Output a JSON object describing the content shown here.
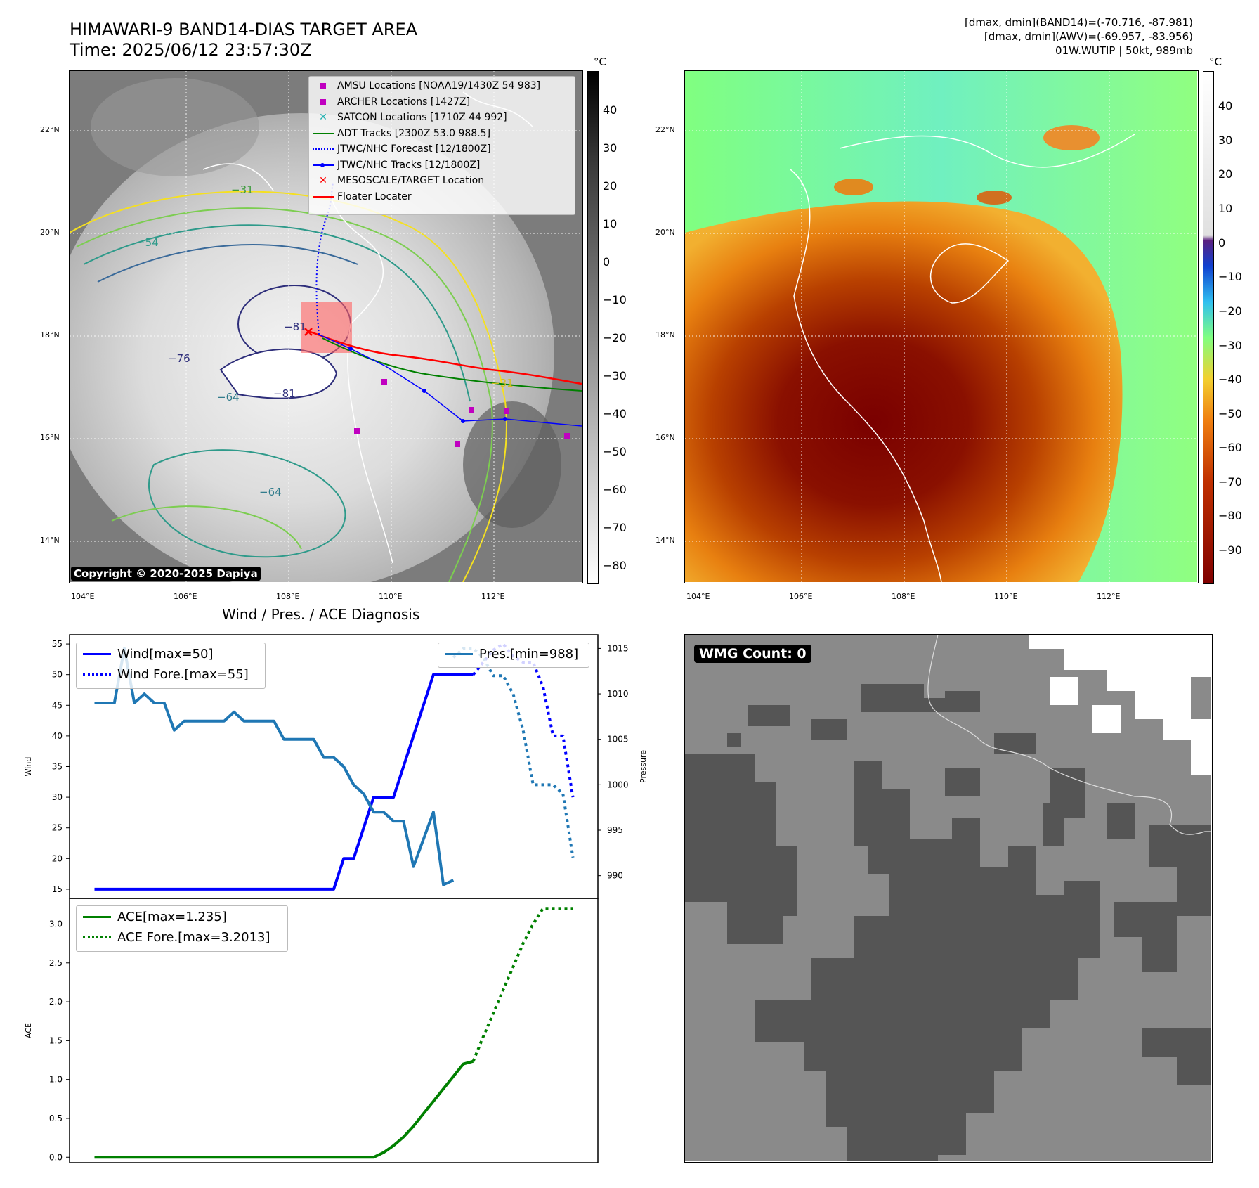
{
  "header": {
    "title_line1": "HIMAWARI-9 BAND14-DIAS TARGET AREA",
    "title_line2": "Time: 2025/06/12 23:57:30Z",
    "info_line1": "[dmax, dmin](BAND14)=(-70.716, -87.981)",
    "info_line2": "[dmax, dmin](AWV)=(-69.957, -83.956)",
    "info_line3": "01W.WUTIP | 50kt, 989mb"
  },
  "map_axes": {
    "lat_labels": [
      "22°N",
      "20°N",
      "18°N",
      "16°N",
      "14°N"
    ],
    "lon_labels": [
      "104°E",
      "106°E",
      "108°E",
      "110°E",
      "112°E"
    ],
    "colorbar_unit": "°C"
  },
  "ir_panel": {
    "copyright": "Copyright © 2020-2025 Dapiya",
    "colorbar_ticks": [
      "40",
      "30",
      "20",
      "10",
      "0",
      "−10",
      "−20",
      "−30",
      "−40",
      "−50",
      "−60",
      "−70",
      "−80"
    ],
    "contour_labels": [
      "−31",
      "−54",
      "−64",
      "−81",
      "−76",
      "−64",
      "−81",
      "−31"
    ],
    "legend": [
      {
        "label": "AMSU Locations [NOAA19/1430Z 54 983]",
        "symbol": "square",
        "color": "#c000c0"
      },
      {
        "label": "ARCHER Locations [1427Z]",
        "symbol": "square",
        "color": "#c000c0"
      },
      {
        "label": "SATCON Locations [1710Z 44 992]",
        "symbol": "x",
        "color": "#20b0b0"
      },
      {
        "label": "ADT Tracks [2300Z 53.0 988.5]",
        "symbol": "line",
        "color": "#008000"
      },
      {
        "label": "JTWC/NHC Forecast [12/1800Z]",
        "symbol": "dotted",
        "color": "#0000ff"
      },
      {
        "label": "JTWC/NHC Tracks [12/1800Z]",
        "symbol": "line-dot",
        "color": "#0000ff"
      },
      {
        "label": "MESOSCALE/TARGET Location",
        "symbol": "x",
        "color": "#ff0000"
      },
      {
        "label": "Floater Locater",
        "symbol": "line",
        "color": "#ff0000"
      }
    ]
  },
  "awv_panel": {
    "colorbar_ticks": [
      "40",
      "30",
      "20",
      "10",
      "0",
      "−10",
      "−20",
      "−30",
      "−40",
      "−50",
      "−60",
      "−70",
      "−80",
      "−90"
    ]
  },
  "diagnosis": {
    "title": "Wind / Pres. / ACE Diagnosis"
  },
  "wmg_panel": {
    "badge": "WMG Count: 0"
  },
  "colors": {
    "wind": "#0000ff",
    "pressure": "#1f77b4",
    "ace": "#008000"
  },
  "chart_data": [
    {
      "type": "line",
      "title": "",
      "ylabel": "Wind",
      "ylabel_right": "Pressure",
      "ylim": [
        13.5,
        56.5
      ],
      "ylim_right": [
        987.5,
        1016.5
      ],
      "yticks": [
        15,
        20,
        25,
        30,
        35,
        40,
        45,
        50,
        55
      ],
      "yticks_right": [
        990,
        995,
        1000,
        1005,
        1010,
        1015
      ],
      "x": [
        0,
        1,
        2,
        3,
        4,
        5,
        6,
        7,
        8,
        9,
        10,
        11,
        12,
        13,
        14,
        15,
        16,
        17,
        18,
        19,
        20,
        21,
        22,
        23,
        24,
        25,
        26,
        27,
        28,
        29,
        30,
        31,
        32,
        33,
        34,
        35,
        36,
        37,
        38,
        39,
        40,
        41,
        42,
        43,
        44,
        45,
        46,
        47,
        48
      ],
      "xlim": [
        -2.5,
        50.5
      ],
      "series": [
        {
          "name": "Wind[max=50]",
          "style": "solid",
          "x": [
            0,
            1,
            2,
            3,
            4,
            5,
            6,
            7,
            8,
            9,
            10,
            11,
            12,
            13,
            14,
            15,
            16,
            17,
            18,
            19,
            20,
            21,
            22,
            23,
            24,
            25,
            26,
            27,
            28,
            29,
            30,
            31,
            32,
            33,
            34,
            35,
            36,
            37,
            38
          ],
          "values": [
            15,
            15,
            15,
            15,
            15,
            15,
            15,
            15,
            15,
            15,
            15,
            15,
            15,
            15,
            15,
            15,
            15,
            15,
            15,
            15,
            15,
            15,
            15,
            15,
            15,
            20,
            20,
            25,
            30,
            30,
            30,
            35,
            40,
            45,
            50,
            50,
            50,
            50,
            50
          ]
        },
        {
          "name": "Wind Fore.[max=55]",
          "style": "dotted",
          "x": [
            38,
            39,
            40,
            41,
            42,
            43,
            44,
            45,
            46,
            47,
            48
          ],
          "values": [
            50,
            52,
            54,
            55,
            53,
            52,
            52,
            48,
            40,
            40,
            30
          ]
        },
        {
          "name": "Pres.[min=988]",
          "style": "solid",
          "axis": "right",
          "x": [
            0,
            1,
            2,
            3,
            4,
            5,
            6,
            7,
            8,
            9,
            10,
            11,
            12,
            13,
            14,
            15,
            16,
            17,
            18,
            19,
            20,
            21,
            22,
            23,
            24,
            25,
            26,
            27,
            28,
            29,
            30,
            31,
            32,
            33,
            34,
            35,
            36
          ],
          "values": [
            1009,
            1009,
            1009,
            1015,
            1009,
            1010,
            1009,
            1009,
            1006,
            1007,
            1007,
            1007,
            1007,
            1007,
            1008,
            1007,
            1007,
            1007,
            1007,
            1005,
            1005,
            1005,
            1005,
            1003,
            1003,
            1002,
            1000,
            999,
            997,
            997,
            996,
            996,
            991,
            994,
            997,
            989,
            989.5
          ]
        },
        {
          "name": "Pres. Fore.",
          "style": "dotted",
          "axis": "right",
          "x": [
            36,
            37,
            38,
            39,
            40,
            41,
            42,
            43,
            44,
            45,
            46,
            47,
            48
          ],
          "values": [
            1014,
            1015,
            1015,
            1014,
            1012,
            1012,
            1010,
            1006,
            1000,
            1000,
            1000,
            999,
            992
          ]
        }
      ]
    },
    {
      "type": "line",
      "title": "",
      "ylabel": "ACE",
      "ylim": [
        -0.07,
        3.33
      ],
      "yticks": [
        0.0,
        0.5,
        1.0,
        1.5,
        2.0,
        2.5,
        3.0
      ],
      "xlim": [
        -2.5,
        50.5
      ],
      "series": [
        {
          "name": "ACE[max=1.235]",
          "style": "solid",
          "x": [
            0,
            5,
            10,
            15,
            20,
            25,
            28,
            29,
            30,
            31,
            32,
            33,
            34,
            35,
            36,
            37,
            38
          ],
          "values": [
            0,
            0,
            0,
            0,
            0,
            0,
            0,
            0.06,
            0.15,
            0.26,
            0.4,
            0.56,
            0.72,
            0.88,
            1.04,
            1.2,
            1.235
          ]
        },
        {
          "name": "ACE Fore.[max=3.2013]",
          "style": "dotted",
          "x": [
            38,
            39,
            40,
            41,
            42,
            43,
            44,
            45,
            46,
            47,
            48
          ],
          "values": [
            1.235,
            1.55,
            1.85,
            2.15,
            2.45,
            2.75,
            3.0,
            3.2013,
            3.2013,
            3.2013,
            3.2013
          ]
        }
      ]
    }
  ]
}
